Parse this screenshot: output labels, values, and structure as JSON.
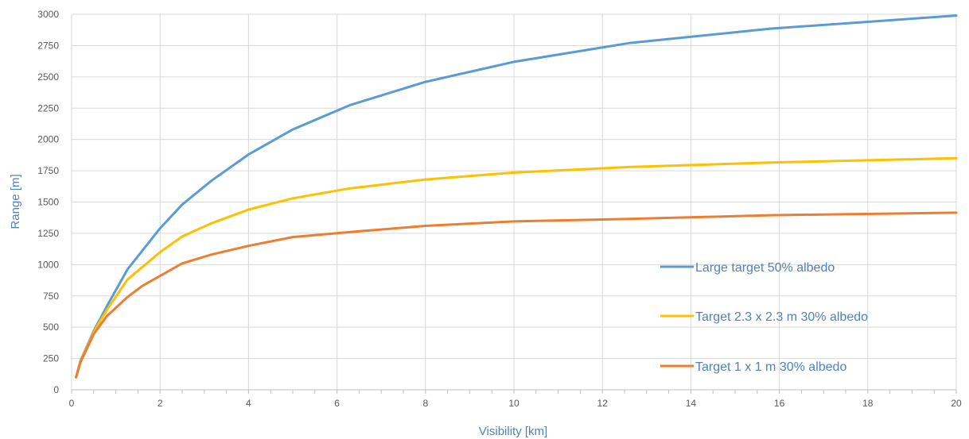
{
  "chart_data": {
    "type": "line",
    "title": "",
    "xlabel": "Visibility [km]",
    "ylabel": "Range [m]",
    "xlim": [
      0,
      20
    ],
    "ylim": [
      0,
      3000
    ],
    "x_ticks": [
      "0",
      "2",
      "4",
      "6",
      "8",
      "10",
      "12",
      "14",
      "16",
      "18",
      "20"
    ],
    "y_ticks": [
      "0",
      "250",
      "500",
      "750",
      "1000",
      "1250",
      "1500",
      "1750",
      "2000",
      "2250",
      "2500",
      "2750",
      "3000"
    ],
    "grid": true,
    "legend_position": "inside-lower-right",
    "label_color": "#4f81bd",
    "series": [
      {
        "name": "Large target 50% albedo",
        "color": "#5b9bd5",
        "points": [
          [
            0.1,
            100
          ],
          [
            0.2,
            230
          ],
          [
            0.5,
            470
          ],
          [
            0.8,
            670
          ],
          [
            1.26,
            960
          ],
          [
            2,
            1290
          ],
          [
            2.5,
            1480
          ],
          [
            3.16,
            1670
          ],
          [
            4,
            1880
          ],
          [
            5,
            2080
          ],
          [
            6.3,
            2275
          ],
          [
            8,
            2460
          ],
          [
            10,
            2620
          ],
          [
            12.6,
            2770
          ],
          [
            15.8,
            2885
          ],
          [
            20,
            2990
          ]
        ]
      },
      {
        "name": "Target 2.3 x 2.3 m 30% albedo",
        "color": "#ffc000",
        "points": [
          [
            0.1,
            100
          ],
          [
            0.2,
            225
          ],
          [
            0.5,
            460
          ],
          [
            0.8,
            640
          ],
          [
            1.26,
            880
          ],
          [
            2,
            1100
          ],
          [
            2.5,
            1225
          ],
          [
            3.16,
            1330
          ],
          [
            4,
            1440
          ],
          [
            5,
            1530
          ],
          [
            6.3,
            1610
          ],
          [
            8,
            1680
          ],
          [
            10,
            1735
          ],
          [
            12.6,
            1780
          ],
          [
            15.8,
            1815
          ],
          [
            20,
            1850
          ]
        ]
      },
      {
        "name": "Target 1 x 1 m 30% albedo",
        "color": "#ed7d31",
        "points": [
          [
            0.1,
            100
          ],
          [
            0.2,
            220
          ],
          [
            0.5,
            445
          ],
          [
            0.8,
            590
          ],
          [
            1.26,
            740
          ],
          [
            1.6,
            830
          ],
          [
            2,
            910
          ],
          [
            2.5,
            1010
          ],
          [
            3.16,
            1080
          ],
          [
            4,
            1150
          ],
          [
            5,
            1220
          ],
          [
            6.3,
            1260
          ],
          [
            8,
            1310
          ],
          [
            10,
            1345
          ],
          [
            12.6,
            1365
          ],
          [
            15.8,
            1395
          ],
          [
            20,
            1415
          ]
        ]
      }
    ]
  }
}
